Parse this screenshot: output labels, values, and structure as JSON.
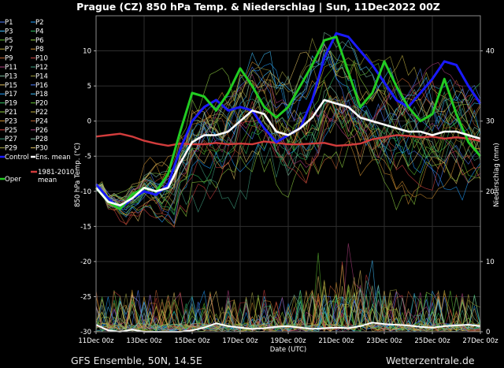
{
  "title": "Prague  (CZ)  850 hPa Temp. & Niederschlag | Sun, 11Dec2022 00Z",
  "footer_left": "GFS Ensemble, 50N, 14.5E",
  "footer_right": "Wetterzentrale.de",
  "chart_data": {
    "type": "line",
    "xlabel": "Date (UTC)",
    "ylabel": "850 hPa Temp. (°C)",
    "y2label": "Niederschlag (mm)",
    "ylim": [
      -30,
      15
    ],
    "y2lim": [
      0,
      45
    ],
    "xlim_days": [
      0,
      16
    ],
    "x_ticks": [
      "11Dec 00z",
      "13Dec 00z",
      "15Dec 00z",
      "17Dec 00z",
      "19Dec 00z",
      "21Dec 00z",
      "23Dec 00z",
      "25Dec 00z",
      "27Dec 00z"
    ],
    "y_ticks": [
      "10",
      "5",
      "0",
      "-5",
      "-10",
      "-15",
      "-20",
      "-25",
      "-30"
    ],
    "y2_ticks": [
      "40",
      "30",
      "20",
      "10",
      "0"
    ],
    "grid": true,
    "legend_position": "left",
    "legend": [
      [
        "P1",
        "P2"
      ],
      [
        "P3",
        "P4"
      ],
      [
        "P5",
        "P6"
      ],
      [
        "P7",
        "P8"
      ],
      [
        "P9",
        "P10"
      ],
      [
        "P11",
        "P12"
      ],
      [
        "P13",
        "P14"
      ],
      [
        "P15",
        "P16"
      ],
      [
        "P17",
        "P18"
      ],
      [
        "P19",
        "P20"
      ],
      [
        "P21",
        "P22"
      ],
      [
        "P23",
        "P24"
      ],
      [
        "P25",
        "P26"
      ],
      [
        "P27",
        "P28"
      ],
      [
        "P29",
        "P30"
      ],
      [
        "Control",
        "Ens. mean"
      ]
    ],
    "legend_extra": [
      "Oper",
      "1981-2010 mean"
    ],
    "colors": {
      "oper": "#22cc22",
      "control": "#1a1aff",
      "ens_mean": "#ffffff",
      "climate_mean": "#d23c3c",
      "members": [
        "#5080ff",
        "#20a0ff",
        "#40c0ff",
        "#30c060",
        "#60c030",
        "#90d040",
        "#c0b040",
        "#d09030",
        "#c06030",
        "#d04040",
        "#b04080",
        "#40a080",
        "#80c0a0",
        "#a0a040",
        "#e0c060"
      ]
    },
    "series": [
      {
        "name": "Ens. mean",
        "x": [
          0,
          0.5,
          1,
          1.5,
          2,
          2.5,
          3,
          3.5,
          4,
          4.5,
          5,
          5.5,
          6,
          6.5,
          7,
          7.5,
          8,
          8.5,
          9,
          9.5,
          10,
          10.5,
          11,
          11.5,
          12,
          12.5,
          13,
          13.5,
          14,
          14.5,
          15,
          15.5,
          16
        ],
        "values": [
          -9.5,
          -11.5,
          -12,
          -11,
          -9.5,
          -10,
          -9.5,
          -6,
          -3,
          -2,
          -2,
          -1.5,
          0,
          1.5,
          1,
          -1.5,
          -2,
          -1,
          0.5,
          3,
          2.5,
          2,
          0.5,
          0,
          -0.5,
          -1,
          -1.5,
          -1.5,
          -2,
          -1.5,
          -1.5,
          -2,
          -2.5
        ]
      },
      {
        "name": "Control",
        "x": [
          0,
          0.5,
          1,
          1.5,
          2,
          2.5,
          3,
          3.5,
          4,
          4.5,
          5,
          5.5,
          6,
          6.5,
          7,
          7.5,
          8,
          8.5,
          9,
          9.5,
          10,
          10.5,
          11,
          11.5,
          12,
          12.5,
          13,
          13.5,
          14,
          14.5,
          15,
          15.5,
          16
        ],
        "values": [
          -9,
          -11,
          -12.5,
          -11,
          -10,
          -10.5,
          -9,
          -4,
          0,
          2,
          3,
          1.5,
          2,
          1.5,
          -1,
          -3,
          -2,
          -1,
          3,
          9,
          12.5,
          12,
          10,
          8,
          5.5,
          3,
          2,
          4,
          6,
          8.5,
          8,
          5,
          2.5
        ]
      },
      {
        "name": "Oper",
        "x": [
          0,
          0.5,
          1,
          1.5,
          2,
          2.5,
          3,
          3.5,
          4,
          4.5,
          5,
          5.5,
          6,
          6.5,
          7,
          7.5,
          8,
          8.5,
          9,
          9.5,
          10,
          10.5,
          11,
          11.5,
          12,
          12.5,
          13,
          13.5,
          14,
          14.5,
          15,
          15.5,
          16
        ],
        "values": [
          -9.5,
          -11.5,
          -12.5,
          -10.5,
          -9.5,
          -10,
          -7.5,
          -1.5,
          4,
          3.5,
          1.5,
          4,
          7.5,
          5,
          2,
          0.5,
          2,
          5,
          8,
          11.5,
          12,
          7,
          2,
          4,
          8.5,
          5,
          2,
          0,
          1,
          6,
          1,
          -3,
          -5
        ]
      },
      {
        "name": "1981-2010 mean",
        "x": [
          0,
          0.5,
          1,
          1.5,
          2,
          2.5,
          3,
          3.5,
          4,
          4.5,
          5,
          5.5,
          6,
          6.5,
          7,
          7.5,
          8,
          8.5,
          9,
          9.5,
          10,
          10.5,
          11,
          11.5,
          12,
          12.5,
          13,
          13.5,
          14,
          14.5,
          15,
          15.5,
          16
        ],
        "values": [
          -2.2,
          -2,
          -1.8,
          -2.2,
          -2.8,
          -3.2,
          -3.5,
          -3.2,
          -3.3,
          -3.3,
          -3.1,
          -3.3,
          -3.2,
          -3.3,
          -2.9,
          -3.1,
          -3.3,
          -3.3,
          -3.2,
          -3.1,
          -3.5,
          -3.4,
          -3.2,
          -2.6,
          -2.3,
          -2,
          -2.1,
          -2.3,
          -2.2,
          -2.5,
          -2.3,
          -2.5,
          -2.8
        ]
      }
    ],
    "ens_mean_precip": {
      "x": [
        0,
        0.5,
        1,
        1.5,
        2,
        2.5,
        3,
        3.5,
        4,
        4.5,
        5,
        5.5,
        6,
        6.5,
        7,
        7.5,
        8,
        8.5,
        9,
        9.5,
        10,
        10.5,
        11,
        11.5,
        12,
        12.5,
        13,
        13.5,
        14,
        14.5,
        15,
        15.5,
        16
      ],
      "values": [
        1,
        0.2,
        0,
        0.3,
        0,
        0,
        0,
        0,
        0.2,
        0.6,
        1.2,
        0.8,
        0.6,
        0.4,
        0.5,
        0.7,
        0.8,
        0.6,
        0.4,
        0.5,
        0.6,
        0.5,
        0.8,
        1.3,
        1.1,
        1,
        0.9,
        0.7,
        0.6,
        0.8,
        0.9,
        1,
        0.8
      ]
    }
  }
}
